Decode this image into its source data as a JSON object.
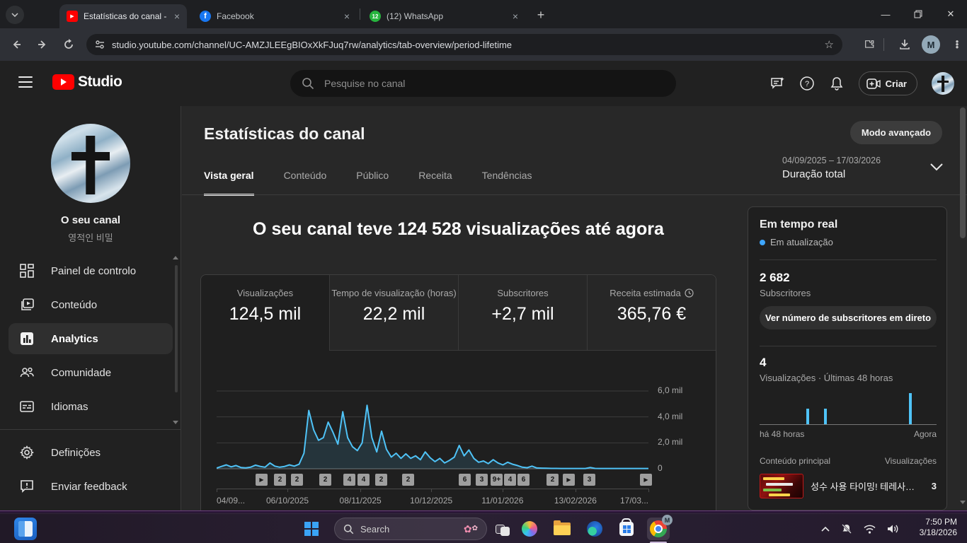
{
  "browser": {
    "tabs": [
      {
        "title": "Estatísticas do canal - YouTube",
        "favicon": "youtube"
      },
      {
        "title": "Facebook",
        "favicon": "facebook"
      },
      {
        "title": "(12) WhatsApp",
        "favicon": "whatsapp-badge-12",
        "badge": "12"
      }
    ],
    "url": "studio.youtube.com/channel/UC-AMZJLEEgBIOxXkFJuq7rw/analytics/tab-overview/period-lifetime",
    "profile_initial": "M"
  },
  "studio_header": {
    "brand": "Studio",
    "search_placeholder": "Pesquise no canal",
    "create_label": "Criar"
  },
  "sidebar": {
    "channel_name": "O seu canal",
    "channel_handle": "영적인 비밀",
    "items": [
      {
        "label": "Painel de controlo"
      },
      {
        "label": "Conteúdo"
      },
      {
        "label": "Analytics",
        "active": true
      },
      {
        "label": "Comunidade"
      },
      {
        "label": "Idiomas"
      }
    ],
    "footer_items": [
      {
        "label": "Definições"
      },
      {
        "label": "Enviar feedback"
      }
    ]
  },
  "main": {
    "page_title": "Estatísticas do canal",
    "advanced_mode_label": "Modo avançado",
    "tabs": [
      "Vista geral",
      "Conteúdo",
      "Público",
      "Receita",
      "Tendências"
    ],
    "active_tab": "Vista geral",
    "date_range": "04/09/2025 – 17/03/2026",
    "period_label": "Duração total",
    "headline": "O seu canal teve 124 528 visualizações até agora",
    "metrics": [
      {
        "label": "Visualizações",
        "value": "124,5 mil",
        "selected": true
      },
      {
        "label": "Tempo de visualização (horas)",
        "value": "22,2 mil"
      },
      {
        "label": "Subscritores",
        "value": "+2,7 mil"
      },
      {
        "label": "Receita estimada",
        "value": "365,76 €",
        "clock_icon": true
      }
    ]
  },
  "chart_data": [
    {
      "type": "line",
      "series": [
        {
          "name": "Visualizações",
          "unit": "mil",
          "values": [
            0.05,
            0.18,
            0.3,
            0.15,
            0.25,
            0.1,
            0.07,
            0.12,
            0.28,
            0.18,
            0.12,
            0.45,
            0.2,
            0.12,
            0.18,
            0.3,
            0.2,
            0.35,
            1.2,
            4.5,
            3.0,
            2.2,
            2.4,
            3.6,
            2.8,
            1.9,
            4.4,
            2.4,
            1.7,
            1.4,
            2.0,
            4.9,
            2.4,
            1.3,
            2.9,
            1.5,
            0.9,
            1.2,
            0.8,
            1.15,
            0.8,
            1.0,
            0.7,
            1.3,
            0.85,
            0.55,
            0.8,
            0.45,
            0.65,
            0.9,
            1.8,
            1.0,
            1.45,
            0.8,
            0.5,
            0.6,
            0.4,
            0.7,
            0.45,
            0.3,
            0.5,
            0.35,
            0.25,
            0.12,
            0.08,
            0.2,
            0.06,
            0.05,
            0.04,
            0.03,
            0.03,
            0.02,
            0.02,
            0.02,
            0.02,
            0.02,
            0.02,
            0.1,
            0.03,
            0.02,
            0.02,
            0.02,
            0.02,
            0.02,
            0.02,
            0.02,
            0.02,
            0.02,
            0.02,
            0.02
          ]
        }
      ],
      "ylim": [
        0,
        6.65
      ],
      "grid": true,
      "legend": "none",
      "line_color": "#4fc3f7",
      "yticks": [
        {
          "value": 0,
          "label": "0"
        },
        {
          "value": 2,
          "label": "2,0 mil"
        },
        {
          "value": 4,
          "label": "4,0 mil"
        },
        {
          "value": 6,
          "label": "6,0 mil"
        }
      ],
      "xticks": [
        {
          "pos": 0.0,
          "label": "04/09..."
        },
        {
          "pos": 0.164,
          "label": "06/10/2025"
        },
        {
          "pos": 0.333,
          "label": "08/11/2025"
        },
        {
          "pos": 0.497,
          "label": "10/12/2025"
        },
        {
          "pos": 0.662,
          "label": "11/01/2026"
        },
        {
          "pos": 0.831,
          "label": "13/02/2026"
        },
        {
          "pos": 1.0,
          "label": "17/03..."
        }
      ],
      "video_markers": [
        {
          "pos": 0.103,
          "label": "▶"
        },
        {
          "pos": 0.146,
          "label": "2"
        },
        {
          "pos": 0.185,
          "label": "2"
        },
        {
          "pos": 0.251,
          "label": "2"
        },
        {
          "pos": 0.307,
          "label": "4"
        },
        {
          "pos": 0.339,
          "label": "4"
        },
        {
          "pos": 0.38,
          "label": "2"
        },
        {
          "pos": 0.443,
          "label": "2"
        },
        {
          "pos": 0.574,
          "label": "6"
        },
        {
          "pos": 0.613,
          "label": "3"
        },
        {
          "pos": 0.648,
          "label": "9+"
        },
        {
          "pos": 0.679,
          "label": "4"
        },
        {
          "pos": 0.71,
          "label": "6"
        },
        {
          "pos": 0.777,
          "label": "2"
        },
        {
          "pos": 0.815,
          "label": "▶"
        },
        {
          "pos": 0.862,
          "label": "3"
        },
        {
          "pos": 0.993,
          "label": "▶"
        }
      ]
    },
    {
      "type": "bar",
      "name": "views-last-48h",
      "bars": [
        {
          "pos": 0.27,
          "value": 1
        },
        {
          "pos": 0.37,
          "value": 1
        },
        {
          "pos": 0.85,
          "value": 2
        }
      ],
      "ylim": [
        0,
        2
      ],
      "bar_color": "#4fc3f7",
      "x_left_label": "há 48 horas",
      "x_right_label": "Agora"
    }
  ],
  "realtime": {
    "title": "Em tempo real",
    "status": "Em atualização",
    "subscribers": "2 682",
    "subscribers_label": "Subscritores",
    "live_button_label": "Ver número de subscritores em direto",
    "views_48h": "4",
    "views_48h_label": "Visualizações · Últimas 48 horas",
    "table_col_left": "Conteúdo principal",
    "table_col_right": "Visualizações",
    "video": {
      "title": "성수 사용 타이밍! 테레사…",
      "views": "3"
    }
  },
  "colors": {
    "accent_blue": "#3ea6ff",
    "chart_line": "#4fc3f7",
    "youtube_red": "#ff0000"
  },
  "taskbar": {
    "search_placeholder": "Search",
    "time": "7:50 PM",
    "date": "3/18/2026"
  }
}
